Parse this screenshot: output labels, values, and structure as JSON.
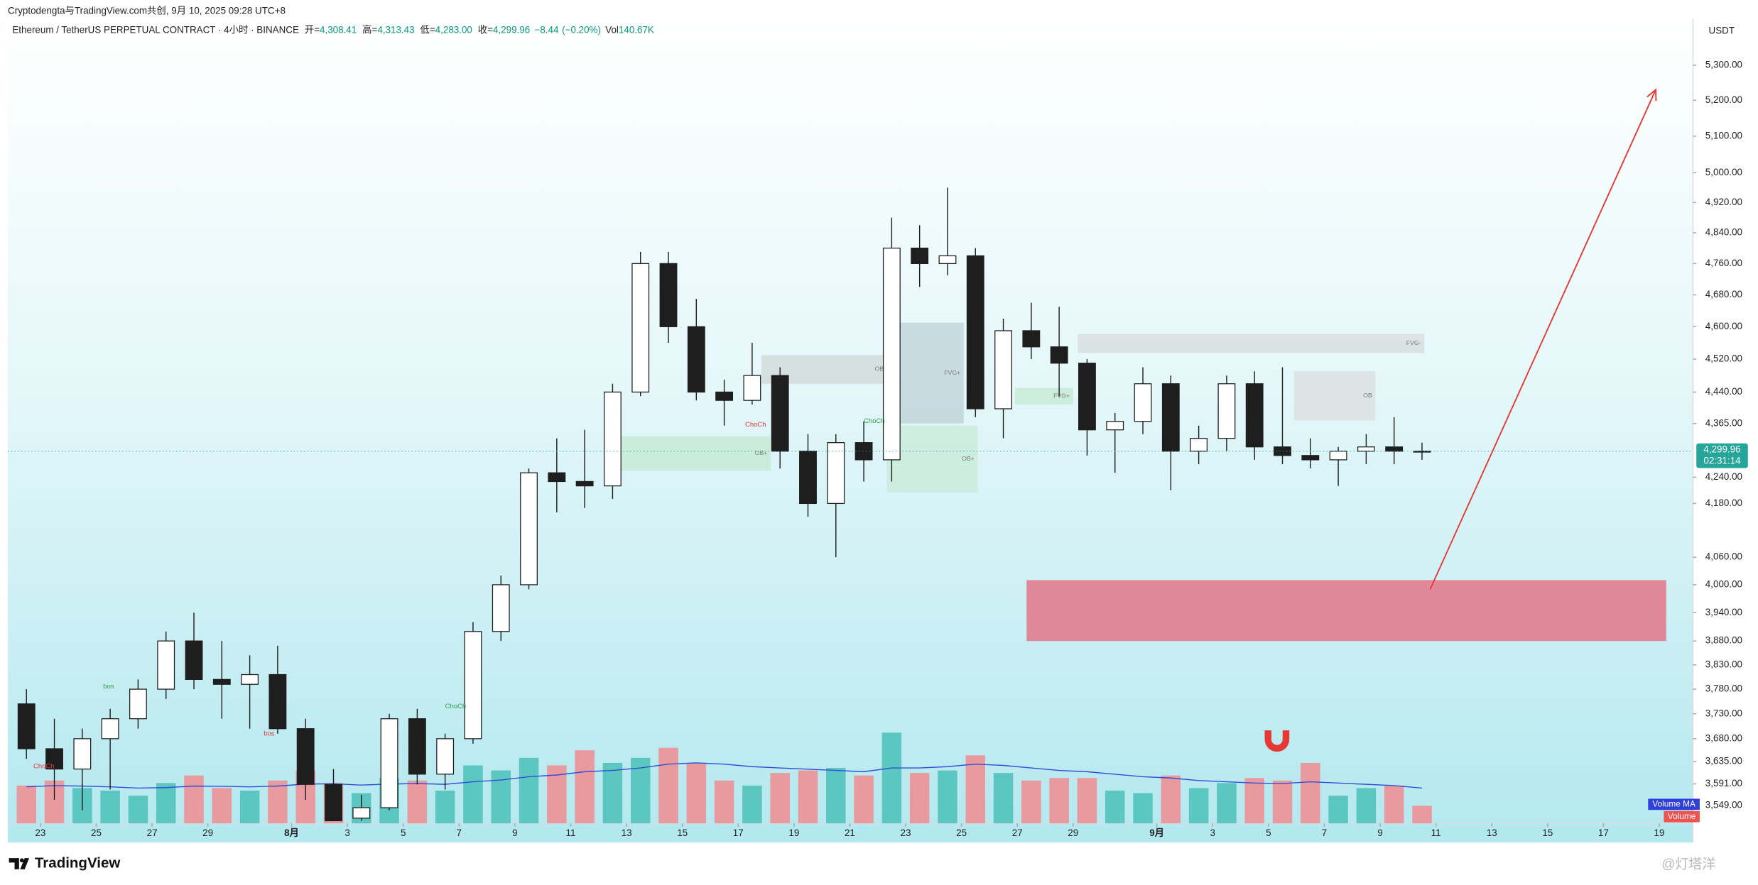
{
  "chart_data": {
    "type": "candlestick",
    "credit": "Cryptodengta与TradingView.com共创, 9月 10, 2025 09:28 UTC+8",
    "symbol": "Ethereum / TetherUS PERPETUAL CONTRACT · 4小时 · BINANCE",
    "ohlc_header": [
      {
        "name": "开=",
        "value": 4308.41,
        "label": "4,308.41"
      },
      {
        "name": "高=",
        "value": 4313.43,
        "label": "4,313.43"
      },
      {
        "name": "低=",
        "value": 4283.0,
        "label": "4,283.00"
      },
      {
        "name": "收=",
        "value": 4299.96,
        "label": "4,299.96"
      }
    ],
    "change": {
      "value": -8.44,
      "label": "−8.44"
    },
    "change_pct": {
      "value": -0.2,
      "label": "(−0.20%)"
    },
    "volume_header": {
      "name": "Vol",
      "value": 140.67,
      "label": "140.67K"
    },
    "currency": "USDT",
    "last_price": {
      "value": 4299.96,
      "label": "4,299.96"
    },
    "countdown": "02:31:14",
    "brand": "TradingView",
    "watermark": "@灯塔洋",
    "log": true,
    "up_color": "#ffffff",
    "down_color": "#1e1e1e",
    "x": [
      "2025-07-22",
      "2025-07-23",
      "2025-07-24",
      "2025-07-25",
      "2025-07-26",
      "2025-07-27",
      "2025-07-28",
      "2025-07-29",
      "2025-07-30",
      "2025-07-31",
      "2025-08-01",
      "2025-08-02",
      "2025-08-03",
      "2025-08-04",
      "2025-08-05",
      "2025-08-06",
      "2025-08-07",
      "2025-08-08",
      "2025-08-09",
      "2025-08-10",
      "2025-08-11",
      "2025-08-12",
      "2025-08-13",
      "2025-08-14",
      "2025-08-15",
      "2025-08-16",
      "2025-08-17",
      "2025-08-18",
      "2025-08-19",
      "2025-08-20",
      "2025-08-21",
      "2025-08-22",
      "2025-08-23",
      "2025-08-24",
      "2025-08-25",
      "2025-08-26",
      "2025-08-27",
      "2025-08-28",
      "2025-08-29",
      "2025-08-30",
      "2025-08-31",
      "2025-09-01",
      "2025-09-02",
      "2025-09-03",
      "2025-09-04",
      "2025-09-05",
      "2025-09-06",
      "2025-09-07",
      "2025-09-08",
      "2025-09-09",
      "2025-09-10"
    ],
    "open": [
      3750,
      3660,
      3620,
      3680,
      3720,
      3780,
      3880,
      3800,
      3790,
      3810,
      3700,
      3590,
      3525,
      3545,
      3720,
      3610,
      3680,
      3900,
      4000,
      4250,
      4230,
      4220,
      4440,
      4760,
      4600,
      4440,
      4420,
      4480,
      4300,
      4180,
      4320,
      4280,
      4800,
      4760,
      4780,
      4400,
      4590,
      4550,
      4510,
      4350,
      4370,
      4460,
      4300,
      4330,
      4460,
      4310,
      4290,
      4280,
      4300,
      4310,
      4300
    ],
    "high": [
      3780,
      3720,
      3700,
      3740,
      3800,
      3900,
      3940,
      3880,
      3850,
      3870,
      3720,
      3620,
      3570,
      3730,
      3740,
      3690,
      3920,
      4020,
      4260,
      4330,
      4350,
      4460,
      4790,
      4790,
      4670,
      4470,
      4560,
      4500,
      4340,
      4340,
      4370,
      4880,
      4860,
      4960,
      4800,
      4620,
      4660,
      4650,
      4520,
      4390,
      4500,
      4480,
      4360,
      4480,
      4490,
      4500,
      4330,
      4310,
      4340,
      4380,
      4320
    ],
    "low": [
      3640,
      3560,
      3540,
      3580,
      3700,
      3760,
      3780,
      3720,
      3700,
      3690,
      3560,
      3520,
      3520,
      3540,
      3590,
      3580,
      3670,
      3880,
      3990,
      4160,
      4170,
      4190,
      4430,
      4560,
      4420,
      4360,
      4410,
      4260,
      4150,
      4060,
      4230,
      4230,
      4700,
      4730,
      4380,
      4330,
      4520,
      4430,
      4290,
      4250,
      4340,
      4210,
      4270,
      4300,
      4280,
      4270,
      4260,
      4220,
      4270,
      4270,
      4280
    ],
    "close": [
      3660,
      3620,
      3680,
      3720,
      3780,
      3880,
      3800,
      3790,
      3810,
      3700,
      3590,
      3520,
      3545,
      3720,
      3610,
      3680,
      3900,
      4000,
      4250,
      4230,
      4220,
      4440,
      4760,
      4600,
      4440,
      4420,
      4480,
      4300,
      4180,
      4320,
      4280,
      4800,
      4760,
      4780,
      4400,
      4590,
      4550,
      4510,
      4350,
      4370,
      4460,
      4300,
      4330,
      4460,
      4310,
      4290,
      4280,
      4300,
      4310,
      4300,
      4299.96
    ],
    "volume": {
      "name": "Volume",
      "up_color": "#5cc6c0",
      "down_color": "#e99a9e",
      "values": [
        1500,
        1700,
        1400,
        1300,
        1100,
        1600,
        1900,
        1400,
        1300,
        1700,
        2100,
        1600,
        1200,
        1800,
        1700,
        1300,
        2300,
        2100,
        2600,
        2300,
        2900,
        2400,
        2600,
        3000,
        2400,
        1700,
        1500,
        2000,
        2100,
        2200,
        1900,
        3600,
        2000,
        2100,
        2700,
        2000,
        1700,
        1800,
        1800,
        1300,
        1200,
        1900,
        1400,
        1600,
        1800,
        1700,
        2400,
        1100,
        1400,
        1500,
        700
      ]
    },
    "volume_ma": {
      "name": "Volume MA",
      "color": "#2f4fd6",
      "values": [
        1450,
        1500,
        1480,
        1450,
        1400,
        1420,
        1480,
        1470,
        1450,
        1480,
        1560,
        1570,
        1520,
        1560,
        1580,
        1550,
        1650,
        1720,
        1850,
        1920,
        2050,
        2100,
        2200,
        2350,
        2400,
        2350,
        2250,
        2200,
        2150,
        2100,
        2050,
        2200,
        2200,
        2250,
        2350,
        2300,
        2200,
        2100,
        2050,
        1950,
        1850,
        1800,
        1700,
        1650,
        1600,
        1580,
        1650,
        1600,
        1550,
        1500,
        1400
      ]
    },
    "vlim": [
      0,
      8000
    ],
    "xlim": [
      "2025-07-21T20:00",
      "2025-09-20T05:00"
    ],
    "ylim": [
      3515,
      5434
    ],
    "yticks": [
      {
        "value": 5300,
        "label": "5,300.00"
      },
      {
        "value": 5200,
        "label": "5,200.00"
      },
      {
        "value": 5100,
        "label": "5,100.00"
      },
      {
        "value": 5000,
        "label": "5,000.00"
      },
      {
        "value": 4920,
        "label": "4,920.00"
      },
      {
        "value": 4840,
        "label": "4,840.00"
      },
      {
        "value": 4760,
        "label": "4,760.00"
      },
      {
        "value": 4680,
        "label": "4,680.00"
      },
      {
        "value": 4600,
        "label": "4,600.00"
      },
      {
        "value": 4520,
        "label": "4,520.00"
      },
      {
        "value": 4440,
        "label": "4,440.00"
      },
      {
        "value": 4365,
        "label": "4,365.00"
      },
      {
        "value": 4240,
        "label": "4,240.00"
      },
      {
        "value": 4180,
        "label": "4,180.00"
      },
      {
        "value": 4060,
        "label": "4,060.00"
      },
      {
        "value": 4000,
        "label": "4,000.00"
      },
      {
        "value": 3940,
        "label": "3,940.00"
      },
      {
        "value": 3880,
        "label": "3,880.00"
      },
      {
        "value": 3830,
        "label": "3,830.00"
      },
      {
        "value": 3780,
        "label": "3,780.00"
      },
      {
        "value": 3730,
        "label": "3,730.00"
      },
      {
        "value": 3680,
        "label": "3,680.00"
      },
      {
        "value": 3635,
        "label": "3,635.00"
      },
      {
        "value": 3591,
        "label": "3,591.00"
      },
      {
        "value": 3549,
        "label": "3,549.00"
      }
    ],
    "xticks": [
      {
        "value": "2025-07-23",
        "label": "23"
      },
      {
        "value": "2025-07-25",
        "label": "25"
      },
      {
        "value": "2025-07-27",
        "label": "27"
      },
      {
        "value": "2025-07-29",
        "label": "29"
      },
      {
        "value": "2025-08-01",
        "label": "8月"
      },
      {
        "value": "2025-08-03",
        "label": "3"
      },
      {
        "value": "2025-08-05",
        "label": "5"
      },
      {
        "value": "2025-08-07",
        "label": "7"
      },
      {
        "value": "2025-08-09",
        "label": "9"
      },
      {
        "value": "2025-08-11",
        "label": "11"
      },
      {
        "value": "2025-08-13",
        "label": "13"
      },
      {
        "value": "2025-08-15",
        "label": "15"
      },
      {
        "value": "2025-08-17",
        "label": "17"
      },
      {
        "value": "2025-08-19",
        "label": "19"
      },
      {
        "value": "2025-08-21",
        "label": "21"
      },
      {
        "value": "2025-08-23",
        "label": "23"
      },
      {
        "value": "2025-08-25",
        "label": "25"
      },
      {
        "value": "2025-08-27",
        "label": "27"
      },
      {
        "value": "2025-08-29",
        "label": "29"
      },
      {
        "value": "2025-09-01",
        "label": "9月"
      },
      {
        "value": "2025-09-03",
        "label": "3"
      },
      {
        "value": "2025-09-05",
        "label": "5"
      },
      {
        "value": "2025-09-07",
        "label": "7"
      },
      {
        "value": "2025-09-09",
        "label": "9"
      },
      {
        "value": "2025-09-11",
        "label": "11"
      },
      {
        "value": "2025-09-13",
        "label": "13"
      },
      {
        "value": "2025-09-15",
        "label": "15"
      },
      {
        "value": "2025-09-17",
        "label": "17"
      },
      {
        "value": "2025-09-19",
        "label": "19"
      }
    ],
    "zones": [
      {
        "from": "2025-08-27T08:00",
        "to": "2025-09-19T06:00",
        "low": 3880,
        "high": 4010,
        "color": "rgba(232,96,118,0.72)"
      },
      {
        "label": "OB",
        "from": "2025-08-17T20:00",
        "to": "2025-08-22T08:00",
        "low": 4460,
        "high": 4530,
        "color": "rgba(200,200,200,0.5)"
      },
      {
        "label": "FVG+",
        "from": "2025-08-22T08:00",
        "to": "2025-08-25T02:00",
        "low": 4365,
        "high": 4610,
        "color": "rgba(180,200,205,0.6)"
      },
      {
        "label": "OB+",
        "from": "2025-08-22T08:00",
        "to": "2025-08-25T14:00",
        "low": 4205,
        "high": 4360,
        "color": "rgba(190,230,200,0.5)"
      },
      {
        "label": "OB+",
        "from": "2025-08-12T16:00",
        "to": "2025-08-18T04:00",
        "low": 4255,
        "high": 4335,
        "color": "rgba(190,230,200,0.6)"
      },
      {
        "label": "FVG-",
        "from": "2025-08-29T04:00",
        "to": "2025-09-10T14:00",
        "low": 4535,
        "high": 4582,
        "color": "rgba(205,205,205,0.5)"
      },
      {
        "label": "OB",
        "from": "2025-09-05T22:00",
        "to": "2025-09-08T20:00",
        "low": 4372,
        "high": 4490,
        "color": "rgba(215,215,215,0.6)"
      },
      {
        "label": "FVG+",
        "from": "2025-08-26T22:00",
        "to": "2025-08-29T00:00",
        "low": 4410,
        "high": 4450,
        "color": "rgba(190,230,200,0.6)"
      }
    ],
    "annotations": [
      {
        "text": "ChoCh",
        "at": [
          "2025-07-22T18:00",
          3625
        ],
        "color": "#e53935"
      },
      {
        "text": "bos",
        "at": [
          "2025-07-25T06:00",
          3785
        ],
        "color": "#2e9e4a"
      },
      {
        "text": "bos",
        "at": [
          "2025-07-31T00:00",
          3690
        ],
        "color": "#e53935"
      },
      {
        "text": "ChoCh",
        "at": [
          "2025-08-06T12:00",
          3745
        ],
        "color": "#2e9e4a"
      },
      {
        "text": "ChoCh",
        "at": [
          "2025-08-17T06:00",
          4362
        ],
        "color": "#e53935"
      },
      {
        "text": "ChoCh",
        "at": [
          "2025-08-21T12:00",
          4370
        ],
        "color": "#2e9e4a"
      }
    ],
    "arrow": {
      "from": [
        "2025-09-10T19:00",
        3990
      ],
      "to": [
        "2025-09-18T21:00",
        5230
      ],
      "color": "#e53935"
    }
  }
}
